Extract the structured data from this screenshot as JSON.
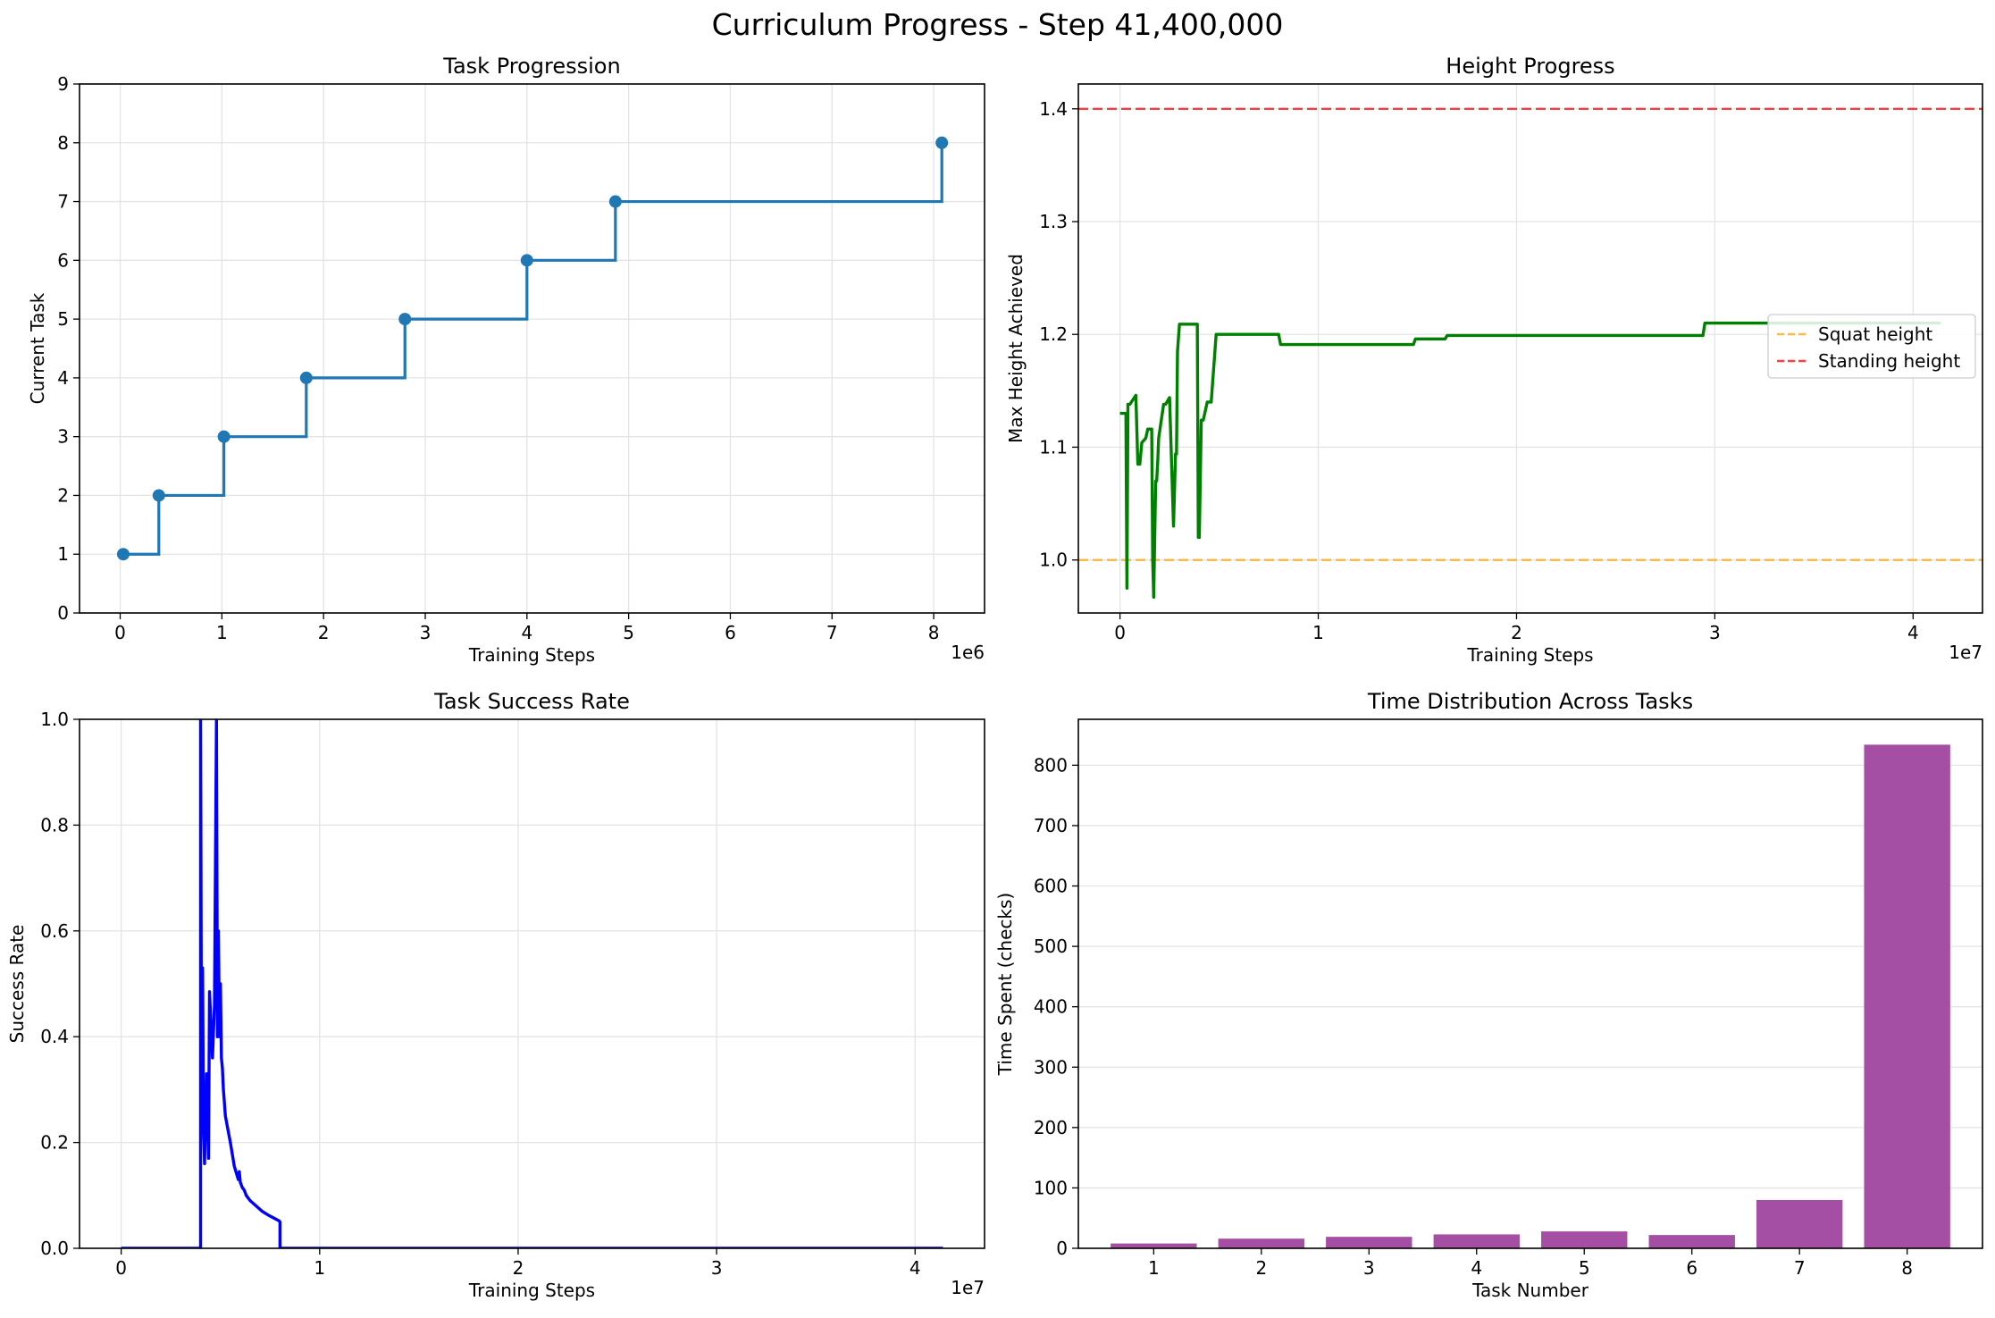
{
  "suptitle": "Curriculum Progress - Step 41,400,000",
  "chart_data": [
    {
      "id": "task",
      "type": "line",
      "title": "Task Progression",
      "xlabel": "Training Steps",
      "ylabel": "Current Task",
      "x_offset_label": "1e6",
      "xlim": [
        -400000,
        8500000
      ],
      "ylim": [
        0,
        9
      ],
      "xticks": [
        0,
        1000000,
        2000000,
        3000000,
        4000000,
        5000000,
        6000000,
        7000000,
        8000000
      ],
      "xtick_labels": [
        "0",
        "1",
        "2",
        "3",
        "4",
        "5",
        "6",
        "7",
        "8"
      ],
      "yticks": [
        0,
        1,
        2,
        3,
        4,
        5,
        6,
        7,
        8,
        9
      ],
      "ytick_labels": [
        "0",
        "1",
        "2",
        "3",
        "4",
        "5",
        "6",
        "7",
        "8",
        "9"
      ],
      "grid": true,
      "drawstyle": "steps-post",
      "color": "#1f77b4",
      "series": [
        {
          "x": [
            30000,
            380000,
            1020000,
            1830000,
            2800000,
            4000000,
            4870000,
            8080000,
            8080000
          ],
          "y": [
            1,
            2,
            3,
            4,
            5,
            6,
            7,
            7,
            8
          ],
          "markers_at": [
            0,
            1,
            2,
            3,
            4,
            5,
            6,
            8
          ]
        }
      ]
    },
    {
      "id": "height",
      "type": "line",
      "title": "Height Progress",
      "xlabel": "Training Steps",
      "ylabel": "Max Height Achieved",
      "x_offset_label": "1e7",
      "xlim": [
        -2100000,
        43500000
      ],
      "ylim": [
        0.953,
        1.422
      ],
      "xticks": [
        0,
        10000000,
        20000000,
        30000000,
        40000000
      ],
      "xtick_labels": [
        "0",
        "1",
        "2",
        "3",
        "4"
      ],
      "yticks": [
        1.0,
        1.1,
        1.2,
        1.3,
        1.4
      ],
      "ytick_labels": [
        "1.0",
        "1.1",
        "1.2",
        "1.3",
        "1.4"
      ],
      "grid": true,
      "legend": {
        "position": "center-right",
        "entries": [
          {
            "label": "Squat height",
            "color": "#ffa500",
            "style": "dashed"
          },
          {
            "label": "Standing height",
            "color": "#ff0000",
            "style": "dashed"
          }
        ]
      },
      "hlines": [
        {
          "y": 1.0,
          "color": "#ffa500",
          "style": "dashed"
        },
        {
          "y": 1.4,
          "color": "#ff0000",
          "style": "dashed"
        }
      ],
      "series": [
        {
          "color": "#008000",
          "x": [
            0,
            300000,
            350000,
            400000,
            450000,
            500000,
            800000,
            900000,
            1000000,
            1100000,
            1300000,
            1400000,
            1600000,
            1650000,
            1700000,
            1800000,
            1850000,
            1900000,
            1950000,
            2100000,
            2200000,
            2300000,
            2500000,
            2700000,
            2800000,
            2850000,
            2900000,
            3000000,
            3050000,
            3100000,
            3400000,
            3900000,
            3950000,
            4000000,
            4100000,
            4200000,
            4400000,
            4600000,
            4850000,
            5000000,
            8000000,
            8100000,
            14800000,
            14900000,
            16400000,
            16500000,
            29400000,
            29500000,
            41400000
          ],
          "y": [
            1.13,
            1.13,
            0.975,
            1.138,
            1.138,
            1.138,
            1.146,
            1.085,
            1.085,
            1.104,
            1.108,
            1.116,
            1.116,
            1.0,
            0.967,
            1.07,
            1.07,
            1.086,
            1.108,
            1.126,
            1.138,
            1.138,
            1.144,
            1.03,
            1.094,
            1.094,
            1.185,
            1.209,
            1.209,
            1.209,
            1.209,
            1.209,
            1.02,
            1.02,
            1.124,
            1.124,
            1.14,
            1.14,
            1.2,
            1.2,
            1.2,
            1.191,
            1.191,
            1.196,
            1.196,
            1.199,
            1.199,
            1.21,
            1.21
          ]
        }
      ]
    },
    {
      "id": "success",
      "type": "line",
      "title": "Task Success Rate",
      "xlabel": "Training Steps",
      "ylabel": "Success Rate",
      "x_offset_label": "1e7",
      "xlim": [
        -2100000,
        43500000
      ],
      "ylim": [
        0,
        1
      ],
      "xticks": [
        0,
        10000000,
        20000000,
        30000000,
        40000000
      ],
      "xtick_labels": [
        "0",
        "1",
        "2",
        "3",
        "4"
      ],
      "yticks": [
        0,
        0.2,
        0.4,
        0.6,
        0.8,
        1.0
      ],
      "ytick_labels": [
        "0.0",
        "0.2",
        "0.4",
        "0.6",
        "0.8",
        "1.0"
      ],
      "grid": true,
      "series": [
        {
          "color": "#0000ff",
          "x": [
            0,
            3950000,
            4000000,
            4000000,
            4050000,
            4100000,
            4150000,
            4200000,
            4300000,
            4400000,
            4450000,
            4550000,
            4600000,
            4700000,
            4800000,
            4850000,
            4900000,
            4950000,
            5000000,
            5050000,
            5100000,
            5150000,
            5250000,
            5500000,
            5700000,
            5900000,
            5950000,
            6000000,
            6100000,
            6200000,
            6300000,
            6500000,
            6800000,
            7100000,
            7400000,
            7700000,
            7950000,
            8000000,
            8000000,
            41400000
          ],
          "y": [
            0,
            0,
            0,
            1.0,
            0.3,
            0.53,
            0.22,
            0.16,
            0.33,
            0.17,
            0.485,
            0.4,
            0.36,
            0.46,
            1.0,
            0.4,
            0.6,
            0.4,
            0.5,
            0.36,
            0.34,
            0.3,
            0.25,
            0.2,
            0.155,
            0.13,
            0.145,
            0.125,
            0.115,
            0.11,
            0.1,
            0.09,
            0.08,
            0.07,
            0.063,
            0.057,
            0.052,
            0.05,
            0,
            0
          ]
        }
      ]
    },
    {
      "id": "time",
      "type": "bar",
      "title": "Time Distribution Across Tasks",
      "xlabel": "Task Number",
      "ylabel": "Time Spent (checks)",
      "categories": [
        "1",
        "2",
        "3",
        "4",
        "5",
        "6",
        "7",
        "8"
      ],
      "values": [
        8,
        16,
        19,
        23,
        28,
        22,
        80,
        834
      ],
      "color": "#a44ea4",
      "ylim": [
        0,
        876
      ],
      "yticks": [
        0,
        100,
        200,
        300,
        400,
        500,
        600,
        700,
        800
      ],
      "ytick_labels": [
        "0",
        "100",
        "200",
        "300",
        "400",
        "500",
        "600",
        "700",
        "800"
      ],
      "grid": true
    }
  ]
}
